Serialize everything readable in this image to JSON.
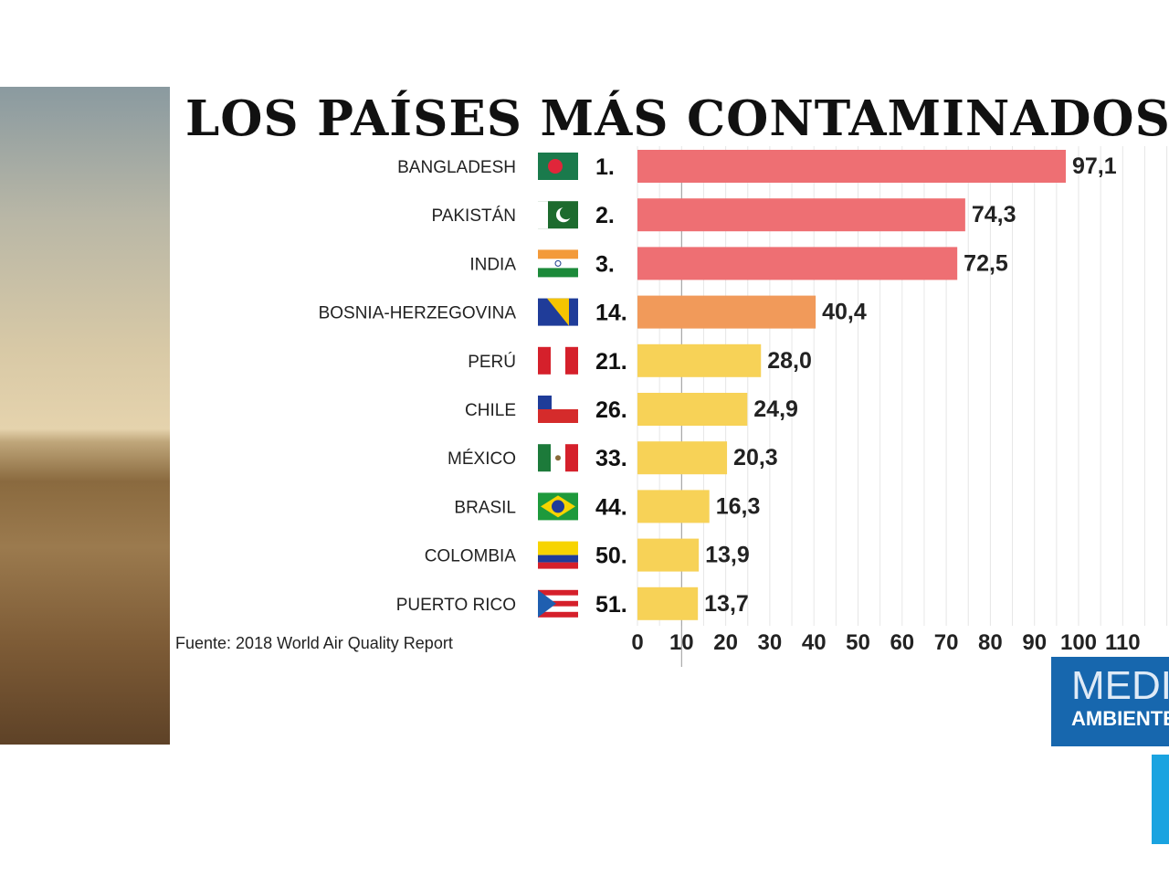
{
  "chart_data": {
    "type": "bar",
    "orientation": "horizontal",
    "title": "LOS PAÍSES MÁS CONTAMINADOS",
    "categories": [
      "BANGLADESH",
      "PAKISTÁN",
      "INDIA",
      "BOSNIA-HERZEGOVINA",
      "PERÚ",
      "CHILE",
      "MÉXICO",
      "BRASIL",
      "COLOMBIA",
      "PUERTO RICO"
    ],
    "ranks": [
      "1.",
      "2.",
      "3.",
      "14.",
      "21.",
      "26.",
      "33.",
      "44.",
      "50.",
      "51."
    ],
    "values": [
      97.1,
      74.3,
      72.5,
      40.4,
      28.0,
      24.9,
      20.3,
      16.3,
      13.9,
      13.7
    ],
    "value_labels": [
      "97,1",
      "74,3",
      "72,5",
      "40,4",
      "28,0",
      "24,9",
      "20,3",
      "16,3",
      "13,9",
      "13,7"
    ],
    "bar_colors": [
      "#ee6f73",
      "#ee6f73",
      "#ee6f73",
      "#f19a5a",
      "#f7d257",
      "#f7d257",
      "#f7d257",
      "#f7d257",
      "#f7d257",
      "#f7d257"
    ],
    "flags": [
      "bangladesh",
      "pakistan",
      "india",
      "bosnia",
      "peru",
      "chile",
      "mexico",
      "brazil",
      "colombia",
      "puerto-rico"
    ],
    "xticks": [
      "0",
      "10",
      "20",
      "30",
      "40",
      "50",
      "60",
      "70",
      "80",
      "90",
      "100",
      "110"
    ],
    "xlim": [
      0,
      120
    ],
    "reference_line": 10,
    "grid": true,
    "source": "Fuente: 2018 World Air Quality Report"
  },
  "logo": {
    "line1": "MEDIO",
    "line2": "AMBIENTE"
  }
}
